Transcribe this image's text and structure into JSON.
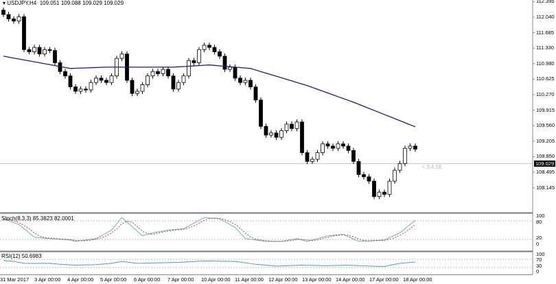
{
  "header": {
    "symbol": "USDJPY,H4",
    "ohlc": "109.051 109.088 109.029 109.029"
  },
  "price_axis": {
    "ticks": [
      "112.395",
      "112.040",
      "111.685",
      "111.330",
      "110.980",
      "110.625",
      "110.270",
      "109.915",
      "109.560",
      "109.205",
      "108.850",
      "108.495",
      "108.145"
    ],
    "current": "109.029"
  },
  "countdown": "< 3:4:18",
  "stoch": {
    "label": "Stoch(8,3,3) 85.3823 82.0001",
    "levels": [
      "100",
      "80",
      "20",
      "0"
    ]
  },
  "rsi": {
    "label": "RSI(12) 50.6983",
    "levels": [
      "100",
      "70",
      "30",
      "0"
    ]
  },
  "time_axis": [
    "31 Mar 2017",
    "3 Apr 00:00",
    "4 Apr 00:00",
    "5 Apr 00:00",
    "6 Apr 00:00",
    "7 Apr 00:00",
    "10 Apr 00:00",
    "11 Apr 00:00",
    "12 Apr 00:00",
    "13 Apr 00:00",
    "14 Apr 00:00",
    "17 Apr 00:00",
    "18 Apr 00:00"
  ],
  "colors": {
    "ma": "#1a1a8c",
    "stoch_main": "#5fb8b0",
    "stoch_signal": "#d03030",
    "rsi": "#4a9ad0"
  },
  "chart_data": {
    "type": "candlestick",
    "open_first": 112.2,
    "closes": [
      112.1,
      112.0,
      111.95,
      112.05,
      111.3,
      111.25,
      111.35,
      111.2,
      111.3,
      111.28,
      111.0,
      110.8,
      110.7,
      110.45,
      110.35,
      110.4,
      110.38,
      110.55,
      110.65,
      110.6,
      110.55,
      110.7,
      111.1,
      111.2,
      110.6,
      110.3,
      110.35,
      110.5,
      110.7,
      110.8,
      110.75,
      110.85,
      110.7,
      110.4,
      110.55,
      110.7,
      111.05,
      111.0,
      111.3,
      111.4,
      111.35,
      111.25,
      111.15,
      110.85,
      110.9,
      110.65,
      110.55,
      110.6,
      110.45,
      110.15,
      109.55,
      109.35,
      109.4,
      109.3,
      109.45,
      109.6,
      109.5,
      109.65,
      108.95,
      108.75,
      108.8,
      108.95,
      109.15,
      109.1,
      109.05,
      109.15,
      109.1,
      109.0,
      108.75,
      108.45,
      108.4,
      108.3,
      107.95,
      108.05,
      108.0,
      108.3,
      108.55,
      108.7,
      109.05,
      109.1,
      109.03
    ],
    "ma": [
      [
        0,
        111.15
      ],
      [
        13,
        110.87
      ],
      [
        20,
        110.9
      ],
      [
        33,
        110.9
      ],
      [
        40,
        110.95
      ],
      [
        48,
        110.87
      ],
      [
        59,
        110.48
      ],
      [
        68,
        110.1
      ],
      [
        80,
        109.54
      ]
    ],
    "stoch_main": [
      [
        0,
        90
      ],
      [
        3,
        70
      ],
      [
        6,
        25
      ],
      [
        9,
        20
      ],
      [
        13,
        15
      ],
      [
        14,
        10
      ],
      [
        18,
        20
      ],
      [
        21,
        50
      ],
      [
        23,
        95
      ],
      [
        27,
        30
      ],
      [
        29,
        40
      ],
      [
        32,
        50
      ],
      [
        35,
        55
      ],
      [
        39,
        95
      ],
      [
        42,
        90
      ],
      [
        45,
        60
      ],
      [
        47,
        20
      ],
      [
        51,
        10
      ],
      [
        54,
        10
      ],
      [
        57,
        20
      ],
      [
        59,
        10
      ],
      [
        63,
        30
      ],
      [
        66,
        35
      ],
      [
        69,
        10
      ],
      [
        74,
        15
      ],
      [
        77,
        40
      ],
      [
        80,
        85
      ]
    ],
    "rsi": [
      [
        0,
        60
      ],
      [
        2,
        55
      ],
      [
        4,
        45
      ],
      [
        9,
        45
      ],
      [
        11,
        40
      ],
      [
        14,
        35
      ],
      [
        18,
        38
      ],
      [
        21,
        45
      ],
      [
        23,
        55
      ],
      [
        26,
        45
      ],
      [
        31,
        48
      ],
      [
        34,
        50
      ],
      [
        39,
        58
      ],
      [
        45,
        55
      ],
      [
        49,
        40
      ],
      [
        53,
        30
      ],
      [
        58,
        35
      ],
      [
        63,
        32
      ],
      [
        67,
        35
      ],
      [
        71,
        30
      ],
      [
        74,
        28
      ],
      [
        77,
        45
      ],
      [
        80,
        52
      ]
    ]
  }
}
